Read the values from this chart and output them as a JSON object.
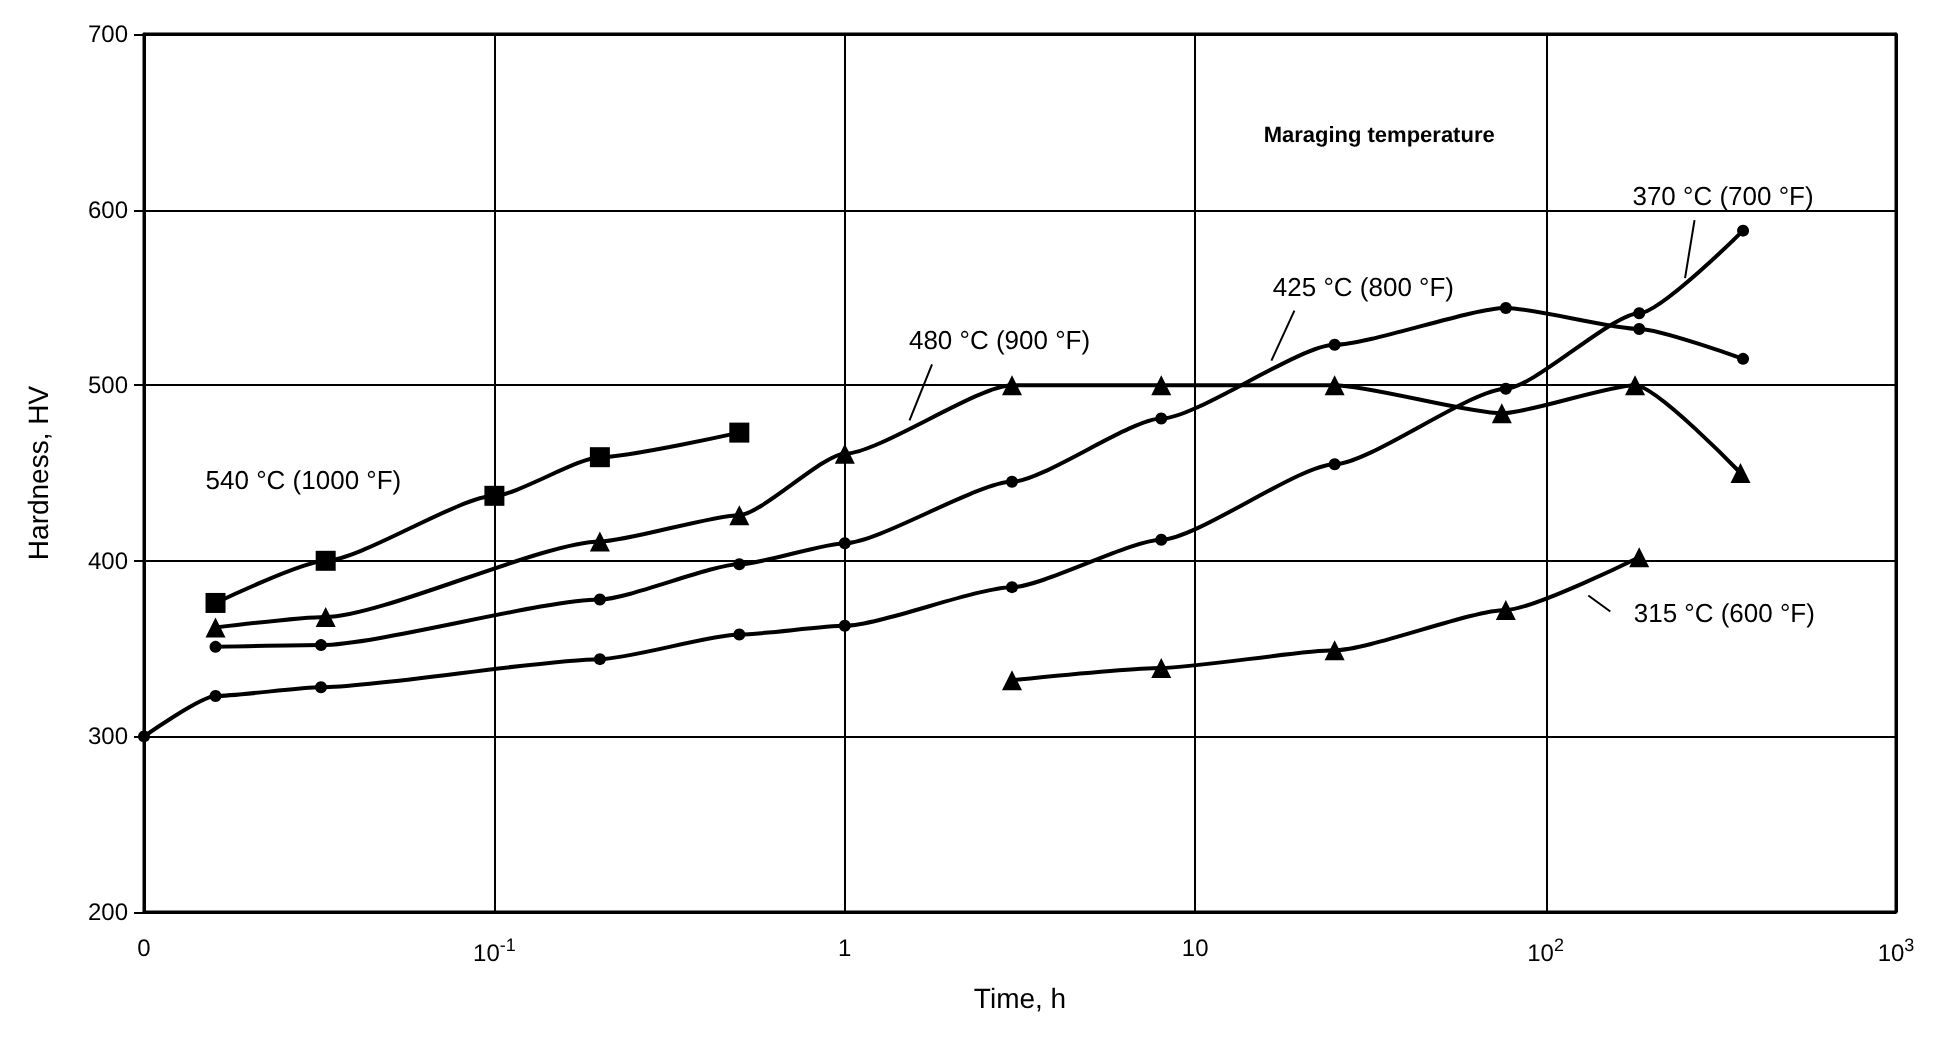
{
  "chart_data": {
    "type": "line",
    "xlabel": "Time, h",
    "ylabel": "Hardness, HV",
    "log": "x",
    "xlim": [
      0.01,
      1000
    ],
    "xticks": [
      {
        "value": 0.01,
        "label": "0"
      },
      {
        "value": 0.1,
        "label": "10$^{-1}$"
      },
      {
        "value": 1,
        "label": "1"
      },
      {
        "value": 10,
        "label": "10"
      },
      {
        "value": 100,
        "label": "10$^{2}$"
      },
      {
        "value": 1000,
        "label": "10$^{3}$"
      }
    ],
    "ylim": [
      200,
      700
    ],
    "yticks": [
      200,
      300,
      400,
      500,
      600,
      700
    ],
    "grid": true,
    "line_style": "solid",
    "series": [
      {
        "color": "#000000",
        "marker": "square",
        "x": [
          0.016,
          0.033,
          0.1,
          0.2,
          0.5
        ],
        "values": [
          376,
          400,
          437,
          459,
          473
        ]
      },
      {
        "color": "#000000",
        "marker": "triangle",
        "x": [
          0.016,
          0.033,
          0.2,
          0.5,
          1,
          3,
          8,
          25,
          75,
          180,
          360
        ],
        "values": [
          362,
          368,
          411,
          426,
          461,
          500,
          500,
          500,
          484,
          500,
          450
        ]
      },
      {
        "color": "#000000",
        "marker": "circle",
        "x": [
          0.016,
          0.032,
          0.2,
          0.5,
          1,
          3,
          8,
          25,
          77,
          185,
          366
        ],
        "values": [
          351,
          352,
          378,
          398,
          410,
          445,
          481,
          523,
          544,
          532,
          515
        ]
      },
      {
        "color": "#000000",
        "marker": "circle",
        "x": [
          0.01,
          0.016,
          0.032,
          0.2,
          0.5,
          1,
          3,
          8,
          25,
          77,
          185,
          366
        ],
        "values": [
          300,
          323,
          328,
          344,
          358,
          363,
          385,
          412,
          455,
          498,
          541,
          588
        ]
      },
      {
        "color": "#000000",
        "marker": "triangle",
        "x": [
          3,
          8,
          25,
          77,
          185
        ],
        "values": [
          332,
          339,
          349,
          372,
          402
        ]
      }
    ],
    "annotations": [
      "540 °C (1000 °F)",
      {
        "text": "480 °C (900 °F)",
        "x": 1.53,
        "y": 480
      },
      {
        "text": "425 °C (800 °F)",
        "x": 16.5,
        "y": 514
      },
      {
        "text": "370 °C (700 °F)",
        "x": 250,
        "y": 561
      },
      "315 °C (600 °F)",
      "Maraging temperature"
    ]
  }
}
